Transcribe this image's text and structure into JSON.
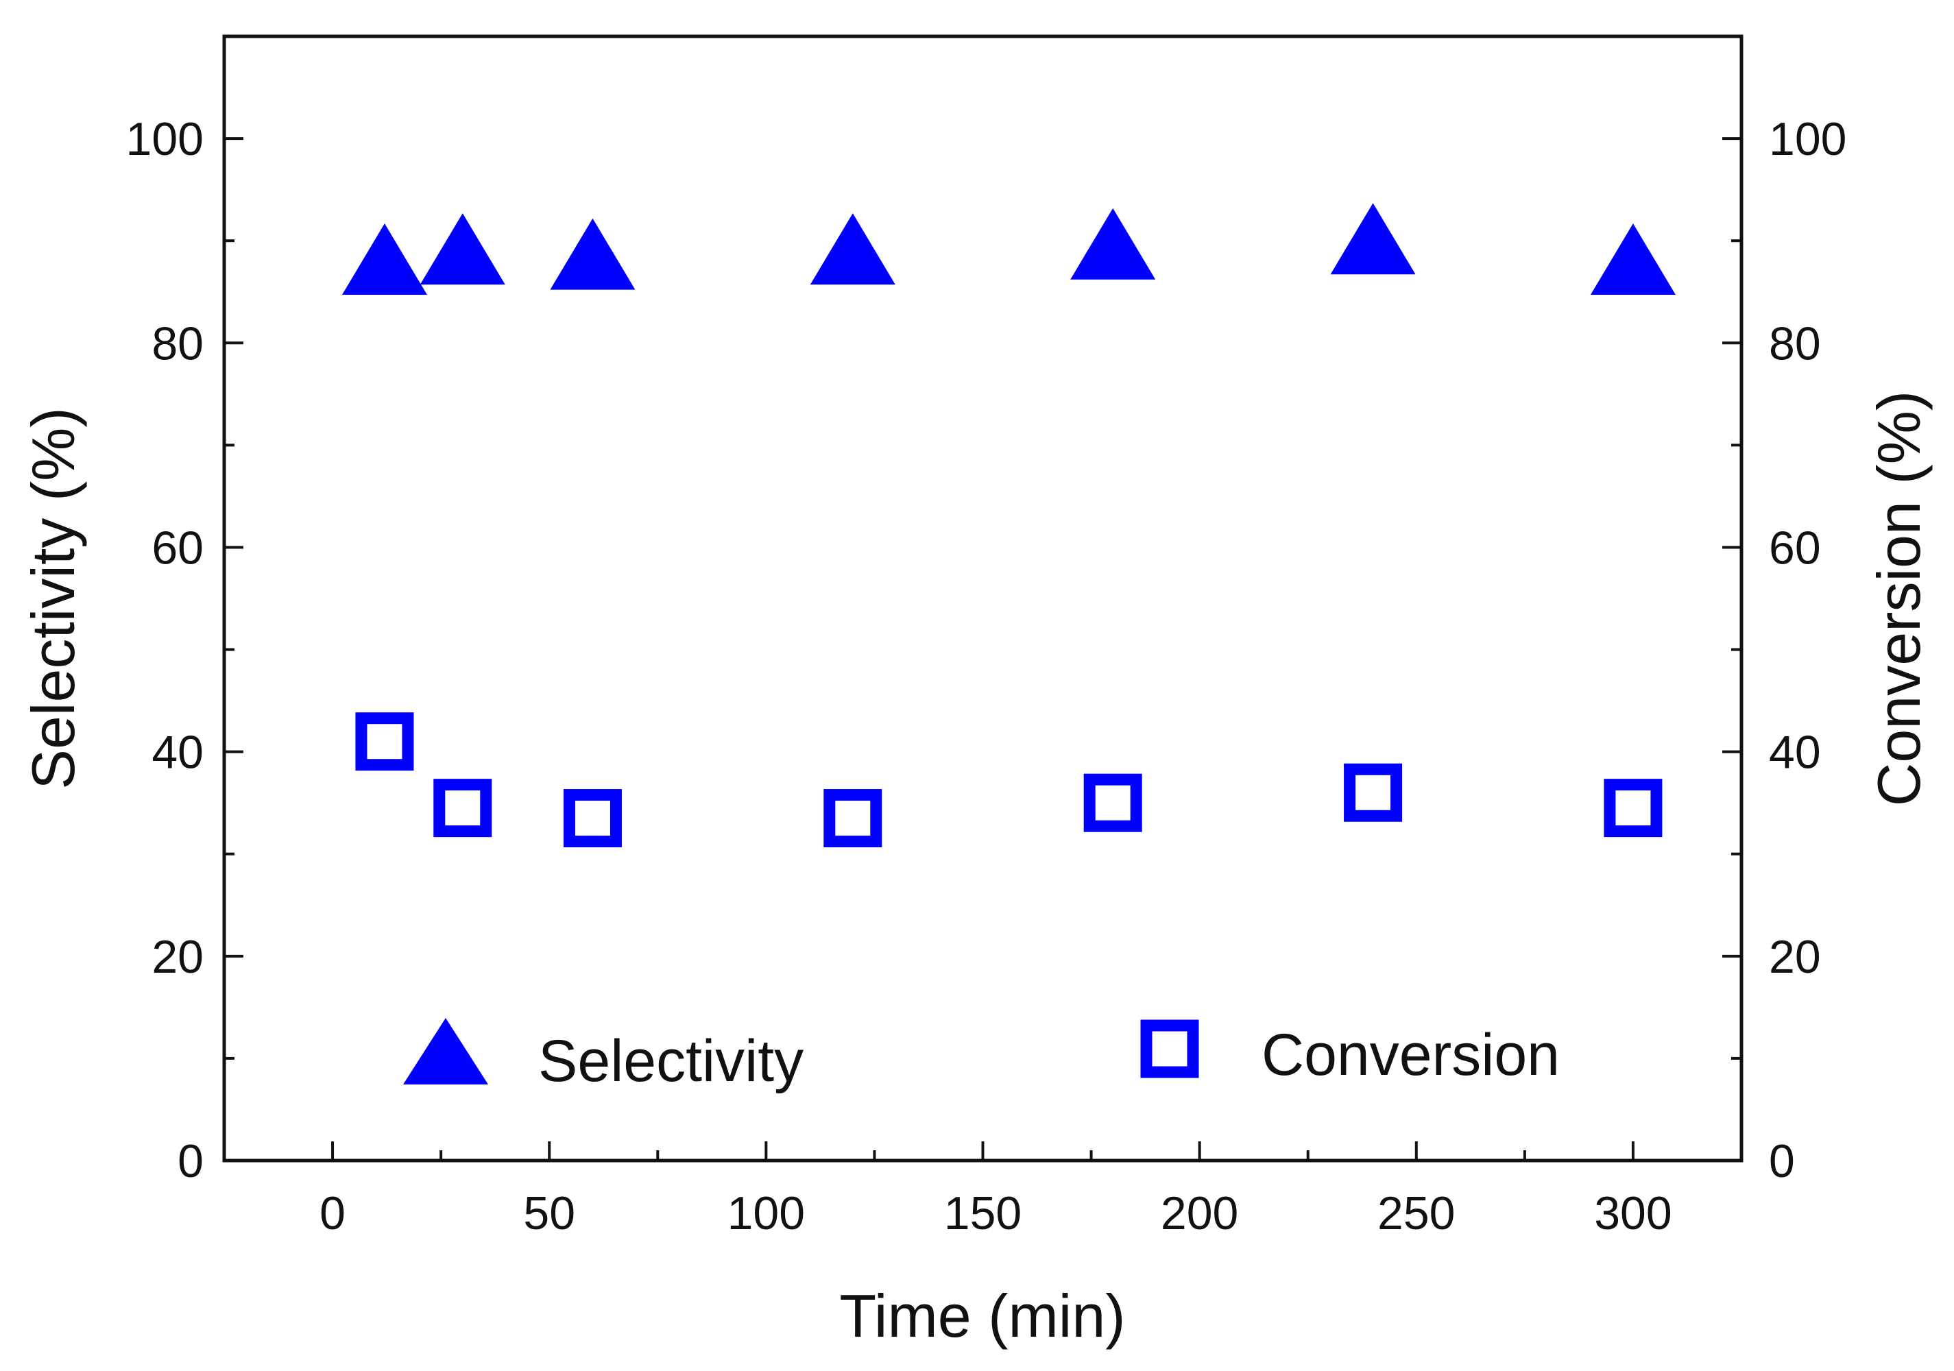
{
  "chart_data": {
    "type": "scatter",
    "title": "",
    "xlabel": "Time (min)",
    "ylabel_left": "Selectivity (%)",
    "ylabel_right": "Conversion (%)",
    "xlim": [
      -25,
      325
    ],
    "ylim": [
      0,
      110
    ],
    "x_ticks": [
      0,
      50,
      100,
      150,
      200,
      250,
      300
    ],
    "y_ticks": [
      0,
      20,
      40,
      60,
      80,
      100
    ],
    "grid": false,
    "legend_position": "bottom",
    "series": [
      {
        "name": "Selectivity",
        "axis": "left",
        "marker": "filled-triangle",
        "color": "#0000ff",
        "x": [
          12,
          30,
          60,
          120,
          180,
          240,
          300
        ],
        "y": [
          87.5,
          88.5,
          88,
          88.5,
          89,
          89.5,
          87.5
        ]
      },
      {
        "name": "Conversion",
        "axis": "right",
        "marker": "open-square",
        "color": "#0000ff",
        "x": [
          12,
          30,
          60,
          120,
          180,
          240,
          300
        ],
        "y": [
          41,
          34.5,
          33.5,
          33.5,
          35,
          36,
          34.5
        ]
      }
    ]
  }
}
